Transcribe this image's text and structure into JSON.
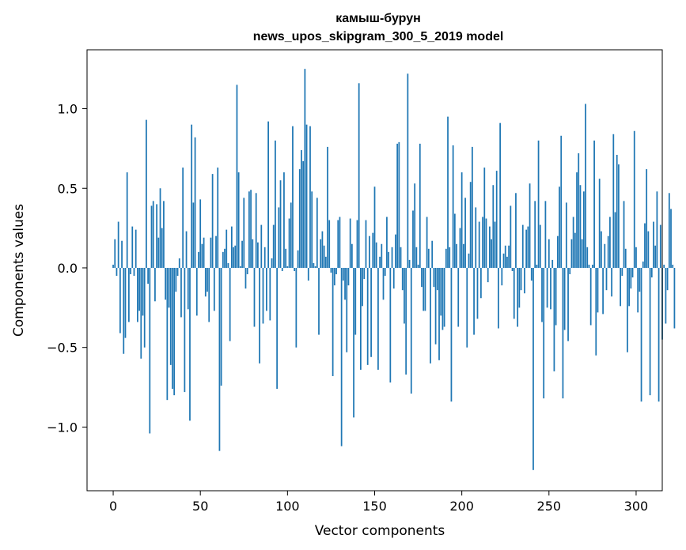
{
  "chart_data": {
    "type": "bar",
    "title_line1": "камыш-бурун",
    "title_line2": "news_upos_skipgram_300_5_2019 model",
    "xlabel": "Vector components",
    "ylabel": "Components values",
    "xlim": [
      -15,
      315
    ],
    "ylim": [
      -1.4,
      1.37
    ],
    "x_ticks": [
      0,
      50,
      100,
      150,
      200,
      250,
      300
    ],
    "x_tick_labels": [
      "0",
      "50",
      "100",
      "150",
      "200",
      "250",
      "300"
    ],
    "y_ticks": [
      -1.0,
      -0.5,
      0.0,
      0.5,
      1.0
    ],
    "y_tick_labels": [
      "−1.0",
      "−0.5",
      "0.0",
      "0.5",
      "1.0"
    ],
    "bar_color": "#1f77b4",
    "grid": false,
    "values": [
      0.02,
      0.18,
      -0.05,
      0.29,
      -0.41,
      0.17,
      -0.54,
      -0.44,
      0.6,
      -0.34,
      -0.04,
      0.26,
      -0.05,
      0.24,
      -0.34,
      -0.27,
      -0.57,
      -0.3,
      -0.5,
      0.93,
      -0.1,
      -1.04,
      0.39,
      0.42,
      -0.21,
      0.4,
      0.19,
      0.5,
      0.25,
      0.42,
      -0.2,
      -0.83,
      -0.25,
      -0.61,
      -0.76,
      -0.8,
      -0.15,
      -0.05,
      0.06,
      -0.31,
      0.63,
      -0.78,
      0.23,
      -0.26,
      -0.96,
      0.9,
      0.41,
      0.82,
      -0.3,
      0.1,
      0.43,
      0.15,
      0.19,
      -0.18,
      -0.15,
      -0.34,
      0.19,
      0.59,
      -0.27,
      0.2,
      0.63,
      -1.15,
      -0.74,
      0.1,
      0.12,
      0.24,
      0.03,
      -0.46,
      0.26,
      0.13,
      0.14,
      1.15,
      0.6,
      0.01,
      0.17,
      0.44,
      -0.13,
      -0.04,
      0.48,
      0.49,
      0.18,
      -0.37,
      0.47,
      0.16,
      -0.6,
      0.27,
      -0.35,
      0.13,
      -0.27,
      0.92,
      -0.33,
      0.06,
      0.27,
      0.8,
      -0.76,
      0.38,
      0.55,
      -0.02,
      0.6,
      0.12,
      0.01,
      0.31,
      0.41,
      0.89,
      -0.02,
      -0.5,
      0.11,
      0.62,
      0.74,
      0.67,
      1.25,
      0.9,
      -0.08,
      0.89,
      0.48,
      0.03,
      0.01,
      0.44,
      -0.42,
      0.18,
      0.23,
      0.14,
      0.07,
      0.76,
      0.3,
      -0.03,
      -0.68,
      -0.11,
      -0.04,
      0.3,
      0.32,
      -1.12,
      -0.08,
      -0.2,
      -0.53,
      -0.11,
      0.31,
      0.15,
      -0.94,
      -0.42,
      0.3,
      1.16,
      -0.64,
      -0.24,
      -0.07,
      0.3,
      -0.61,
      0.2,
      -0.56,
      0.22,
      0.51,
      0.16,
      -0.64,
      0.07,
      0.15,
      -0.2,
      -0.05,
      0.32,
      0.1,
      -0.72,
      0.13,
      -0.13,
      0.21,
      0.78,
      0.79,
      0.13,
      -0.14,
      -0.35,
      -0.67,
      1.22,
      0.05,
      -0.79,
      0.36,
      0.53,
      0.13,
      0.02,
      0.78,
      -0.12,
      -0.27,
      -0.27,
      0.32,
      0.12,
      -0.6,
      0.17,
      -0.12,
      -0.48,
      -0.14,
      -0.58,
      -0.3,
      -0.39,
      -0.37,
      0.12,
      0.95,
      0.13,
      -0.84,
      0.77,
      0.34,
      0.15,
      -0.37,
      0.25,
      0.6,
      0.15,
      0.44,
      -0.5,
      0.09,
      0.54,
      0.76,
      -0.42,
      0.38,
      -0.32,
      0.29,
      -0.19,
      0.32,
      0.63,
      0.31,
      -0.09,
      0.26,
      0.18,
      0.52,
      0.29,
      0.61,
      -0.38,
      0.91,
      -0.11,
      0.09,
      0.14,
      0.07,
      0.14,
      0.39,
      -0.02,
      -0.32,
      0.47,
      -0.37,
      -0.25,
      -0.14,
      0.27,
      -0.16,
      0.24,
      0.26,
      0.53,
      -0.08,
      -1.27,
      0.42,
      0.02,
      0.8,
      0.27,
      -0.34,
      -0.82,
      0.42,
      -0.25,
      0.18,
      -0.26,
      0.05,
      -0.65,
      -0.36,
      0.2,
      0.51,
      0.83,
      -0.82,
      -0.39,
      0.41,
      -0.46,
      -0.04,
      0.18,
      0.32,
      0.22,
      0.6,
      0.72,
      0.52,
      0.18,
      0.48,
      1.03,
      0.13,
      0.02,
      -0.36,
      0.02,
      0.8,
      -0.55,
      -0.28,
      0.56,
      0.23,
      -0.29,
      0.15,
      -0.14,
      0.2,
      0.32,
      -0.18,
      0.84,
      0.35,
      0.71,
      0.65,
      -0.24,
      -0.05,
      0.42,
      0.12,
      -0.53,
      -0.24,
      -0.13,
      -0.06,
      0.86,
      0.13,
      -0.28,
      -0.15,
      -0.84,
      0.04,
      0.28,
      0.62,
      0.23,
      -0.8,
      -0.06,
      0.29,
      0.14,
      0.48,
      -0.84,
      0.27,
      -0.45,
      0.02,
      -0.35,
      -0.14,
      0.47,
      0.37,
      0.02,
      -0.38
    ]
  }
}
